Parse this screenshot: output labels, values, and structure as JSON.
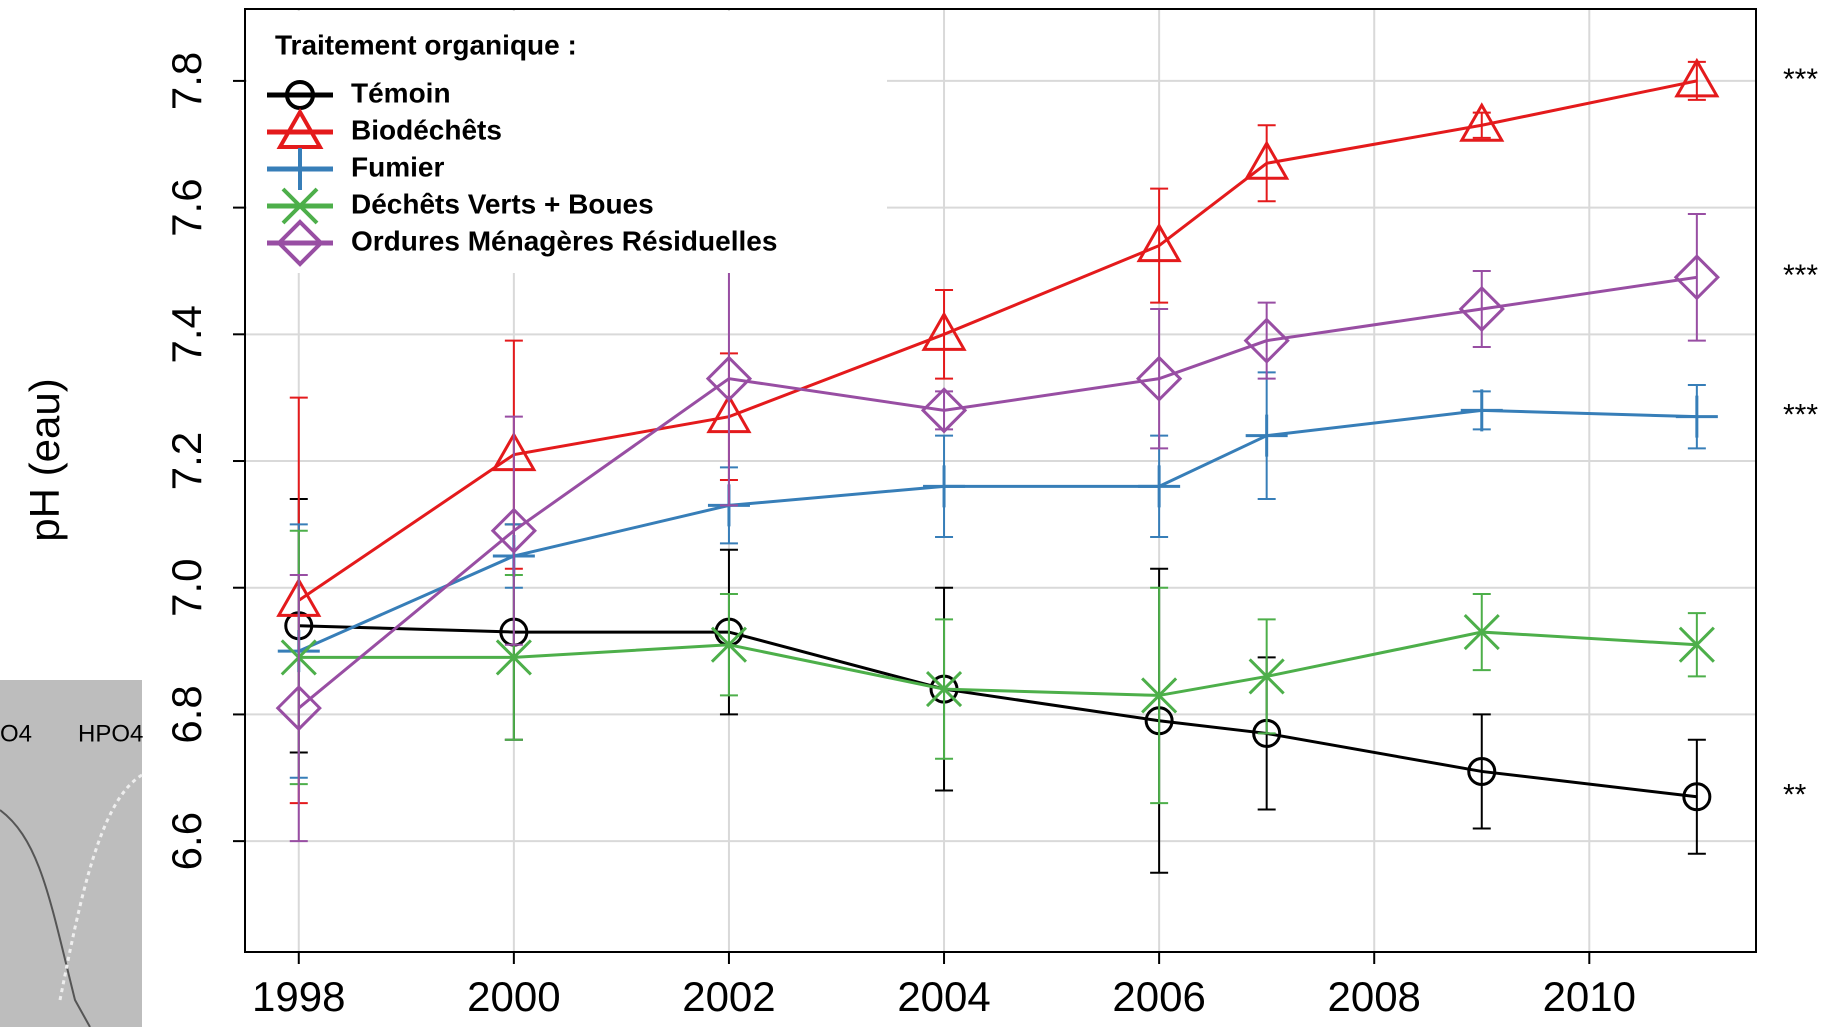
{
  "chart_data": {
    "type": "line",
    "y_label": "pH (eau)",
    "legend_title": "Traitement organique :",
    "legend": "top-left",
    "grid": true,
    "x": [
      1998,
      2000,
      2002,
      2004,
      2006,
      2007,
      2009,
      2011
    ],
    "xlim": [
      1997.5,
      2011.55
    ],
    "xticks": [
      1998,
      2000,
      2002,
      2004,
      2006,
      2008,
      2010
    ],
    "ylim": [
      6.425,
      7.9135
    ],
    "yticks": [
      6.6,
      6.8,
      {
        "value": 7,
        "label": "7.0"
      },
      7.2,
      7.4,
      7.6,
      7.8
    ],
    "series": [
      {
        "name": "Témoin",
        "color": "#000000",
        "marker": "circle",
        "values": [
          6.94,
          6.93,
          6.93,
          6.84,
          6.79,
          6.77,
          6.71,
          6.67
        ],
        "errors": [
          0.2,
          0.17,
          0.13,
          0.16,
          0.24,
          0.12,
          0.09,
          0.09
        ],
        "significance": "**"
      },
      {
        "name": "Biodéchêts",
        "color": "#e41a1c",
        "marker": "triangle",
        "values": [
          6.98,
          7.21,
          7.27,
          7.4,
          7.54,
          7.67,
          7.73,
          7.8
        ],
        "errors": [
          0.32,
          0.18,
          0.1,
          0.07,
          0.09,
          0.06,
          0.02,
          0.03
        ],
        "significance": "***"
      },
      {
        "name": "Fumier",
        "color": "#377eb8",
        "marker": "plus",
        "values": [
          6.9,
          7.05,
          7.13,
          7.16,
          7.16,
          7.24,
          7.28,
          7.27
        ],
        "errors": [
          0.2,
          0.05,
          0.06,
          0.08,
          0.08,
          0.1,
          0.03,
          0.05
        ],
        "significance": "***"
      },
      {
        "name": "Déchêts Verts + Boues",
        "color": "#4daf4a",
        "marker": "x",
        "values": [
          6.89,
          6.89,
          6.91,
          6.84,
          6.83,
          6.86,
          6.93,
          6.91
        ],
        "errors": [
          0.2,
          0.13,
          0.08,
          0.11,
          0.17,
          0.09,
          0.06,
          0.05
        ]
      },
      {
        "name": "Ordures Ménagères Résiduelles",
        "color": "#984ea3",
        "marker": "diamond",
        "values": [
          6.81,
          7.09,
          7.33,
          7.28,
          7.33,
          7.39,
          7.44,
          7.49
        ],
        "errors": [
          0.21,
          0.18,
          0.2,
          0.03,
          0.11,
          0.06,
          0.06,
          0.1
        ],
        "significance": "***"
      }
    ]
  },
  "fragment": {
    "labels": [
      "O4",
      "HPO4"
    ]
  }
}
